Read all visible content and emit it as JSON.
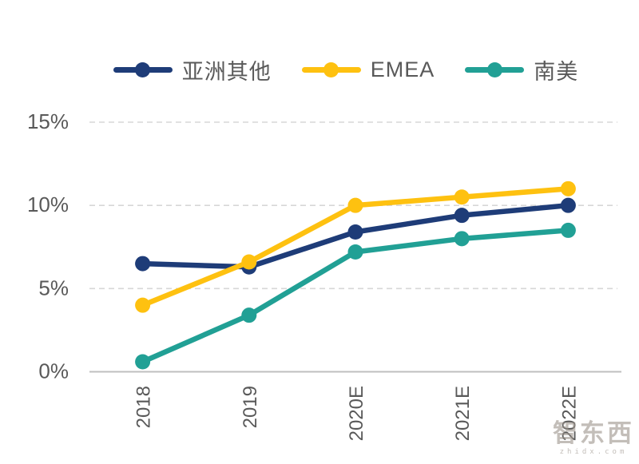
{
  "chart_data": {
    "type": "line",
    "title": "",
    "categories": [
      "2018",
      "2019",
      "2020E",
      "2021E",
      "2022E"
    ],
    "series": [
      {
        "name": "亚洲其他",
        "slug": "asia-other",
        "color": "#1e3c78",
        "values": [
          6.5,
          6.3,
          8.4,
          9.4,
          10.0
        ]
      },
      {
        "name": "EMEA",
        "slug": "emea",
        "color": "#fec110",
        "values": [
          4.0,
          6.6,
          10.0,
          10.5,
          11.0
        ]
      },
      {
        "name": "南美",
        "slug": "south-america",
        "color": "#21a095",
        "values": [
          0.6,
          3.4,
          7.2,
          8.0,
          8.5
        ]
      }
    ],
    "ylim": [
      0,
      15
    ],
    "ytick_step": 5,
    "ytick_labels": [
      "0%",
      "5%",
      "10%",
      "15%"
    ],
    "xlabel": "",
    "ylabel": "",
    "grid": "horizontal-dashed",
    "legend_position": "top"
  },
  "style": {
    "gridline_color": "#d7d7d7",
    "axis_line_color": "#bfbfbf",
    "tick_label_color": "#595959",
    "legend_label_color": "#595959",
    "background": "#ffffff"
  },
  "watermark": {
    "brand": "智东西",
    "site": "zhidx.com"
  }
}
